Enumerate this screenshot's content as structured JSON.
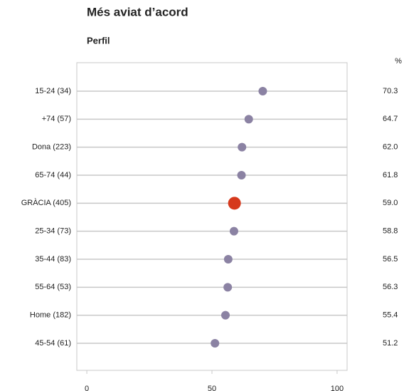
{
  "chart_data": {
    "type": "dot",
    "title": "Més aviat d’acord",
    "subtitle": "Perfil",
    "unit_label": "%",
    "categories": [
      "15-24 (34)",
      "+74 (57)",
      "Dona (223)",
      "65-74 (44)",
      "GRÀCIA (405)",
      "25-34 (73)",
      "35-44 (83)",
      "55-64 (53)",
      "Home (182)",
      "45-54 (61)"
    ],
    "values": [
      70.3,
      64.7,
      62.0,
      61.8,
      59.0,
      58.8,
      56.5,
      56.3,
      55.4,
      51.2
    ],
    "value_labels": [
      "70.3",
      "64.7",
      "62.0",
      "61.8",
      "59.0",
      "58.8",
      "56.5",
      "56.3",
      "55.4",
      "51.2"
    ],
    "colors": [
      "#8b82a3",
      "#8b82a3",
      "#8b82a3",
      "#8b82a3",
      "#d6391c",
      "#8b82a3",
      "#8b82a3",
      "#8b82a3",
      "#8b82a3",
      "#8b82a3"
    ],
    "xlim": [
      -4,
      104
    ],
    "xticks": [
      0,
      50,
      100
    ]
  }
}
